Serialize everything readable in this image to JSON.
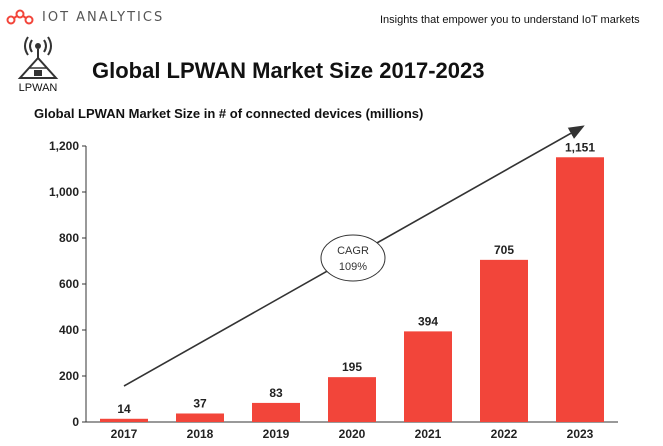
{
  "header": {
    "brand": "IOT ANALYTICS",
    "tagline": "Insights that empower you to understand IoT markets",
    "icon_caption": "LPWAN",
    "title": "Global LPWAN Market Size 2017-2023"
  },
  "chart_data": {
    "type": "bar",
    "title": "Global LPWAN Market Size in # of connected devices (millions)",
    "categories": [
      "2017",
      "2018",
      "2019",
      "2020",
      "2021",
      "2022",
      "2023"
    ],
    "values": [
      14,
      37,
      83,
      195,
      394,
      705,
      1151
    ],
    "value_labels": [
      "14",
      "37",
      "83",
      "195",
      "394",
      "705",
      "1,151"
    ],
    "xlabel": "",
    "ylabel": "",
    "ylim": [
      0,
      1200
    ],
    "yticks": [
      0,
      200,
      400,
      600,
      800,
      1000,
      1200
    ],
    "ytick_labels": [
      "0",
      "200",
      "400",
      "600",
      "800",
      "1,000",
      "1,200"
    ],
    "grid": false,
    "bar_color": "#f2453a",
    "annotation": {
      "line1": "CAGR",
      "line2": "109%"
    }
  }
}
